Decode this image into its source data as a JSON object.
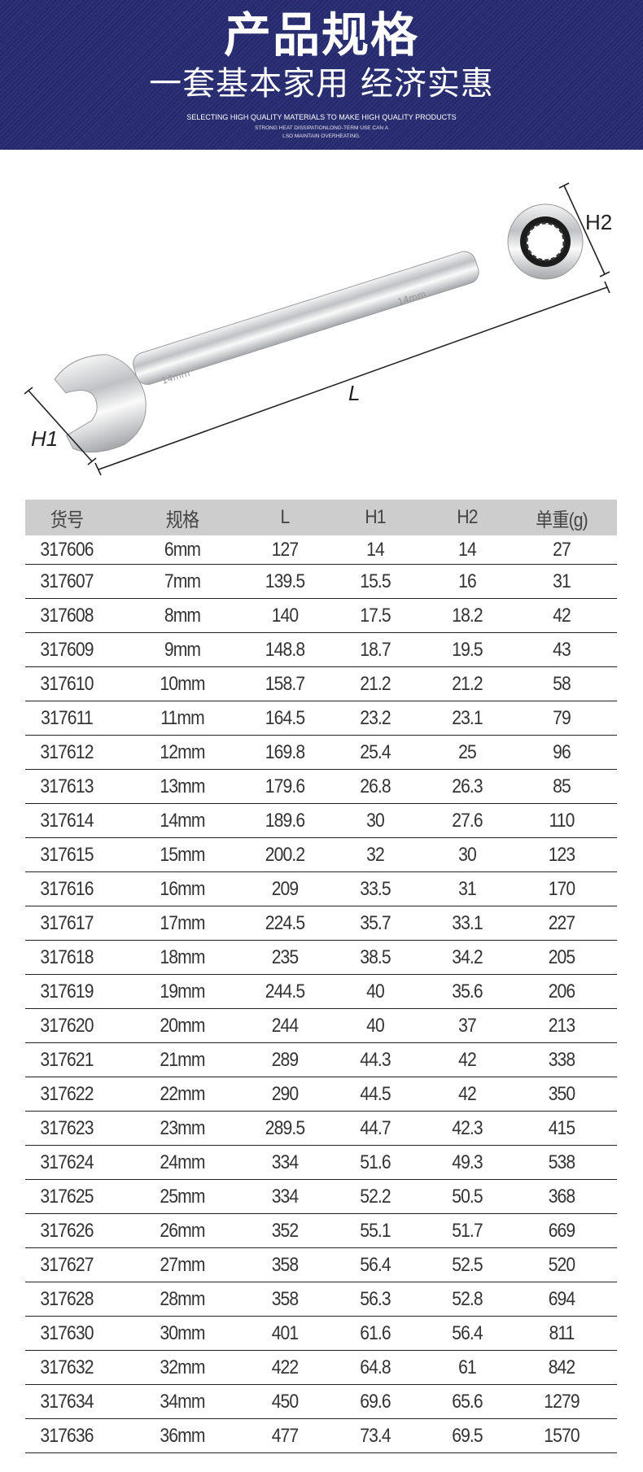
{
  "banner": {
    "title": "产品规格",
    "subtitle": "一套基本家用 经济实惠",
    "english_line1": "SELECTING HIGH QUALITY MATERIALS TO MAKE HIGH QUALITY PRODUCTS",
    "english_line2": "STRONG HEAT DISSIPATIONLONG-TERM USE CAN A",
    "english_line3": "LSO MAINTAIN OVERHEATING."
  },
  "diagram": {
    "label_h1": "H1",
    "label_h2": "H2",
    "label_l": "L",
    "wrench_marking_1": "14mm",
    "wrench_marking_2": "14mm"
  },
  "table": {
    "headers": [
      "货号",
      "规格",
      "L",
      "H1",
      "H2",
      "单重(g)"
    ],
    "rows": [
      [
        "317606",
        "6mm",
        "127",
        "14",
        "14",
        "27"
      ],
      [
        "317607",
        "7mm",
        "139.5",
        "15.5",
        "16",
        "31"
      ],
      [
        "317608",
        "8mm",
        "140",
        "17.5",
        "18.2",
        "42"
      ],
      [
        "317609",
        "9mm",
        "148.8",
        "18.7",
        "19.5",
        "43"
      ],
      [
        "317610",
        "10mm",
        "158.7",
        "21.2",
        "21.2",
        "58"
      ],
      [
        "317611",
        "11mm",
        "164.5",
        "23.2",
        "23.1",
        "79"
      ],
      [
        "317612",
        "12mm",
        "169.8",
        "25.4",
        "25",
        "96"
      ],
      [
        "317613",
        "13mm",
        "179.6",
        "26.8",
        "26.3",
        "85"
      ],
      [
        "317614",
        "14mm",
        "189.6",
        "30",
        "27.6",
        "110"
      ],
      [
        "317615",
        "15mm",
        "200.2",
        "32",
        "30",
        "123"
      ],
      [
        "317616",
        "16mm",
        "209",
        "33.5",
        "31",
        "170"
      ],
      [
        "317617",
        "17mm",
        "224.5",
        "35.7",
        "33.1",
        "227"
      ],
      [
        "317618",
        "18mm",
        "235",
        "38.5",
        "34.2",
        "205"
      ],
      [
        "317619",
        "19mm",
        "244.5",
        "40",
        "35.6",
        "206"
      ],
      [
        "317620",
        "20mm",
        "244",
        "40",
        "37",
        "213"
      ],
      [
        "317621",
        "21mm",
        "289",
        "44.3",
        "42",
        "338"
      ],
      [
        "317622",
        "22mm",
        "290",
        "44.5",
        "42",
        "350"
      ],
      [
        "317623",
        "23mm",
        "289.5",
        "44.7",
        "42.3",
        "415"
      ],
      [
        "317624",
        "24mm",
        "334",
        "51.6",
        "49.3",
        "538"
      ],
      [
        "317625",
        "25mm",
        "334",
        "52.2",
        "50.5",
        "368"
      ],
      [
        "317626",
        "26mm",
        "352",
        "55.1",
        "51.7",
        "669"
      ],
      [
        "317627",
        "27mm",
        "358",
        "56.4",
        "52.5",
        "520"
      ],
      [
        "317628",
        "28mm",
        "358",
        "56.3",
        "52.8",
        "694"
      ],
      [
        "317630",
        "30mm",
        "401",
        "61.6",
        "56.4",
        "811"
      ],
      [
        "317632",
        "32mm",
        "422",
        "64.8",
        "61",
        "842"
      ],
      [
        "317634",
        "34mm",
        "450",
        "69.6",
        "65.6",
        "1279"
      ],
      [
        "317636",
        "36mm",
        "477",
        "73.4",
        "69.5",
        "1570"
      ]
    ]
  },
  "colors": {
    "banner_bg": "#2a2e72",
    "header_bg": "#cdcdcd",
    "text": "#333333"
  }
}
